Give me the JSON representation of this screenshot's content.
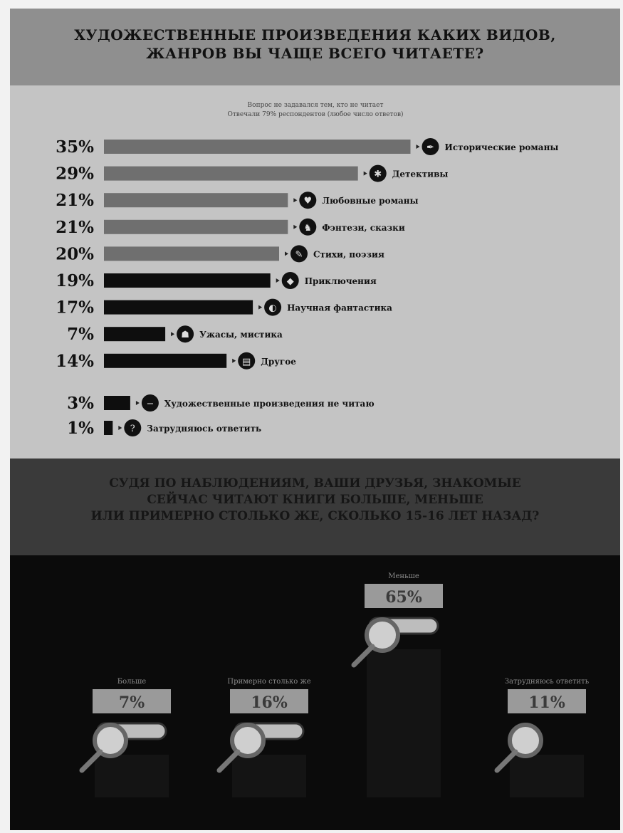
{
  "top_title_line1": "ХУДОЖЕСТВЕННЫЕ ПРОИЗВЕДЕНИЯ КАКИХ ВИДОВ,",
  "top_title_line2": "ЖАНРОВ ВЫ ЧАЩЕ ВСЕГО ЧИТАЕТЕ?",
  "mid_title_line1": "СУДЯ ПО НАБЛЮДЕНИЯМ, ВАШИ ДРУЗЬЯ, ЗНАКОМЫЕ",
  "mid_title_line2": "СЕЙЧАС ЧИТАЮТ КНИГИ БОЛЬШЕ, МЕНЬШЕ",
  "mid_title_line3": "ИЛИ ПРИМЕРНО СТОЛЬКО ЖЕ, СКОЛЬКО 15-16 ЛЕТ НАЗАД?",
  "colors": {
    "bar_light": "#6f6f6f",
    "bar_dark": "#0e0e0e",
    "dark_bg": "#0b0b0b",
    "label_box": "#9a9a9a"
  },
  "chart_data": [
    {
      "type": "bar",
      "orientation": "horizontal",
      "title": "ХУДОЖЕСТВЕННЫЕ ПРОИЗВЕДЕНИЯ КАКИХ ВИДОВ, ЖАНРОВ ВЫ ЧАЩЕ ВСЕГО ЧИТАЕТЕ?",
      "subtitle": [
        "Вопрос не задавался тем, кто не читает",
        "Отвечали 79% респондентов (любое число ответов)"
      ],
      "categories": [
        "Исторические романы",
        "Детективы",
        "Любовные романы",
        "Фэнтези, сказки",
        "Стихи, поэзия",
        "Приключения",
        "Научная фантастика",
        "Ужасы, мистика",
        "Другое"
      ],
      "values": [
        35,
        29,
        21,
        21,
        20,
        19,
        17,
        7,
        14
      ],
      "value_labels": [
        "35%",
        "29%",
        "21%",
        "21%",
        "20%",
        "19%",
        "17%",
        "7%",
        "14%"
      ],
      "icons": [
        "quill-icon",
        "magnifier-icon",
        "heart-icon",
        "wizard-icon",
        "pen-icon",
        "compass-icon",
        "ufo-icon",
        "ghost-icon",
        "book-icon"
      ],
      "extra_categories": [
        "Художественные произведения не читаю",
        "Затрудняюсь ответить"
      ],
      "extra_values": [
        3,
        1
      ],
      "extra_value_labels": [
        "3%",
        "1%"
      ],
      "extra_icons": [
        "minus-icon",
        "question-icon"
      ],
      "xlim": [
        0,
        35
      ]
    },
    {
      "type": "bar",
      "title": "СУДЯ ПО НАБЛЮДЕНИЯМ, ВАШИ ДРУЗЬЯ, ЗНАКОМЫЕ СЕЙЧАС ЧИТАЮТ КНИГИ БОЛЬШЕ, МЕНЬШЕ ИЛИ ПРИМЕРНО СТОЛЬКО ЖЕ, СКОЛЬКО 15-16 ЛЕТ НАЗАД?",
      "categories": [
        "Больше",
        "Примерно столько же",
        "Меньше",
        "Затрудняюсь ответить"
      ],
      "values": [
        7,
        16,
        65,
        11
      ],
      "value_labels": [
        "7%",
        "16%",
        "65%",
        "11%"
      ]
    }
  ]
}
